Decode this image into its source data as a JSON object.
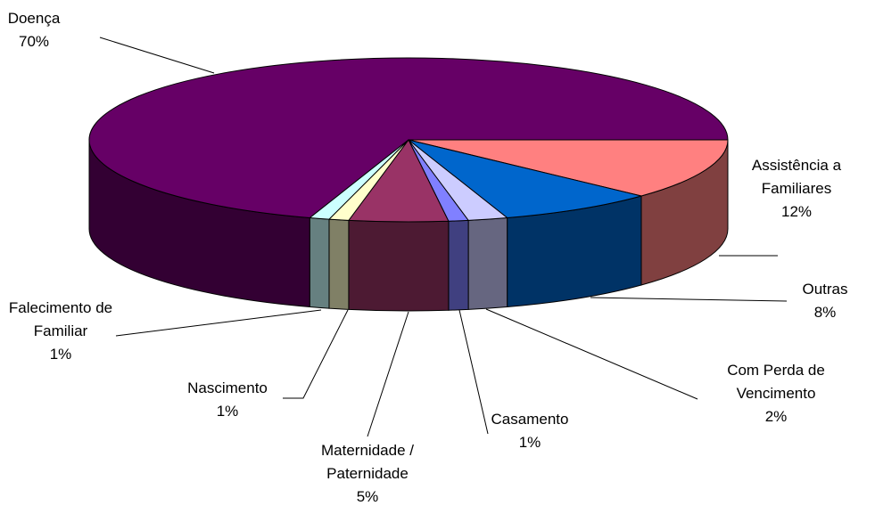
{
  "chart_data": {
    "type": "pie",
    "categories": [
      "Doença",
      "Assistência a Familiares",
      "Outras",
      "Com Perda de Vencimento",
      "Casamento",
      "Maternidade / Paternidade",
      "Nascimento",
      "Falecimento de Familiar"
    ],
    "values": [
      70,
      12,
      8,
      2,
      1,
      5,
      1,
      1
    ],
    "value_labels": [
      "70%",
      "12%",
      "8%",
      "2%",
      "1%",
      "5%",
      "1%",
      "1%"
    ],
    "colors": [
      "#660066",
      "#ff8080",
      "#0066cc",
      "#ccccff",
      "#8080ff",
      "#993366",
      "#ffffcc",
      "#ccffff"
    ]
  }
}
